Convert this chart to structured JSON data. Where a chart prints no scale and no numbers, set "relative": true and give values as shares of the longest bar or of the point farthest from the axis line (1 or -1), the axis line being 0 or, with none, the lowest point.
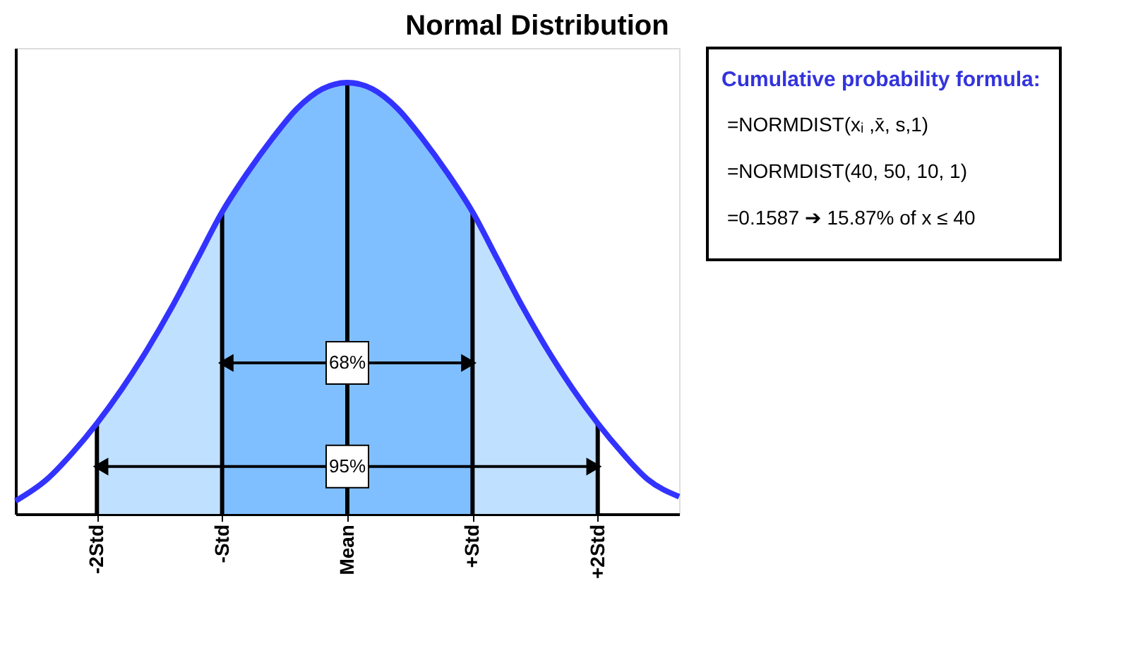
{
  "chart_data": {
    "type": "area",
    "title": "Normal Distribution",
    "relative": true,
    "xlim": [
      -2.65,
      2.65
    ],
    "xticks": [
      {
        "value": -2,
        "label": "-2Std"
      },
      {
        "value": -1,
        "label": "-Std"
      },
      {
        "value": 0,
        "label": "Mean"
      },
      {
        "value": 1,
        "label": "+Std"
      },
      {
        "value": 2,
        "label": "+2Std"
      }
    ],
    "series": [
      {
        "color": "#c0e0ff",
        "x": [
          -2,
          -1.8,
          -1.6,
          -1.4,
          -1.2,
          -1
        ],
        "values": [
          0.21,
          0.29,
          0.38,
          0.48,
          0.59,
          0.7
        ]
      },
      {
        "color": "#c0e0ff",
        "x": [
          1,
          1.2,
          1.4,
          1.6,
          1.8,
          2
        ],
        "values": [
          0.7,
          0.59,
          0.48,
          0.38,
          0.29,
          0.21
        ]
      },
      {
        "color": "#80bfff",
        "x": [
          -1,
          -0.8,
          -0.6,
          -0.4,
          -0.2,
          0,
          0.2,
          0.4,
          0.6,
          0.8,
          1
        ],
        "values": [
          0.7,
          0.79,
          0.87,
          0.94,
          0.985,
          1,
          0.985,
          0.94,
          0.87,
          0.79,
          0.7
        ]
      },
      {
        "type": "bar",
        "color": "#000000",
        "x": [
          -2,
          -1,
          0,
          1,
          2
        ],
        "values": [
          0.21,
          0.7,
          1,
          0.7,
          0.21
        ]
      },
      {
        "type": "line",
        "color": "#3333ff",
        "x": [
          -2.65,
          -2.4,
          -2.2,
          -2,
          -1.8,
          -1.6,
          -1.4,
          -1.2,
          -1,
          -0.8,
          -0.6,
          -0.4,
          -0.2,
          0,
          0.2,
          0.4,
          0.6,
          0.8,
          1,
          1.2,
          1.4,
          1.6,
          1.8,
          2,
          2.2,
          2.4,
          2.65
        ],
        "values": [
          0.03,
          0.08,
          0.14,
          0.21,
          0.29,
          0.38,
          0.48,
          0.59,
          0.7,
          0.79,
          0.87,
          0.94,
          0.985,
          1,
          0.985,
          0.94,
          0.87,
          0.79,
          0.7,
          0.59,
          0.48,
          0.38,
          0.29,
          0.21,
          0.14,
          0.08,
          0.04
        ]
      }
    ],
    "annotations": [
      {
        "text": "68%",
        "x": 0,
        "y": 0.35
      },
      {
        "text": "95%",
        "x": 0,
        "y": 0.11
      },
      "Cumulative probability formula:",
      "=NORMDIST(xᵢ ,x̄, s,1)",
      "=NORMDIST(40, 50, 10, 1)",
      "=0.1587 ➔ 15.87% of x ≤ 40"
    ]
  }
}
